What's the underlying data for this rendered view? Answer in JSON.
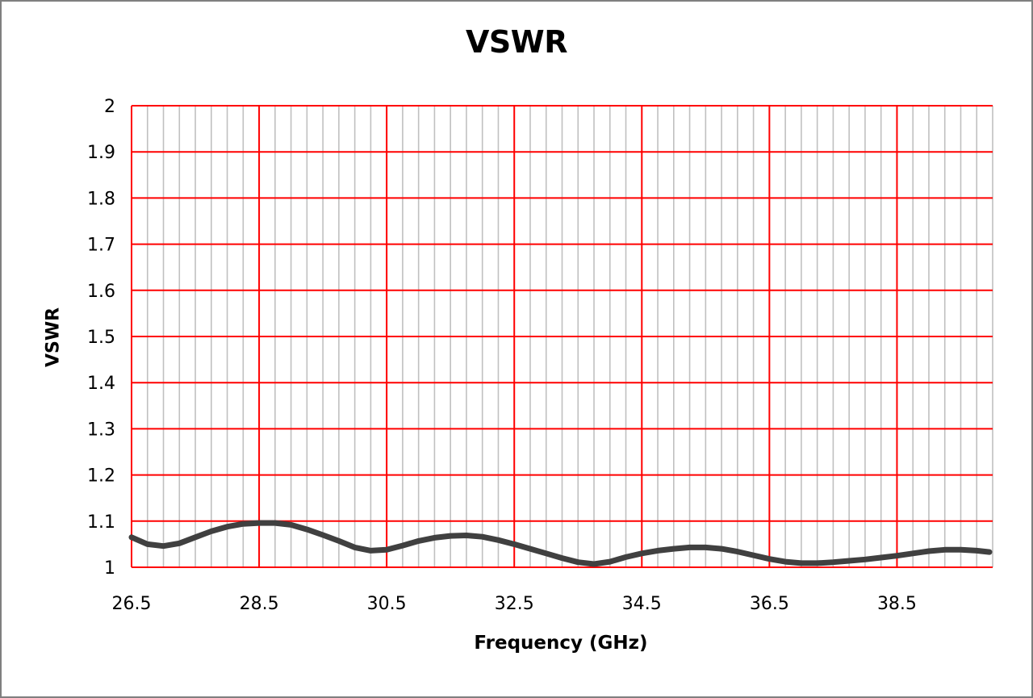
{
  "chart_data": {
    "type": "line",
    "title": "VSWR",
    "xlabel": "Frequency (GHz)",
    "ylabel": "VSWR",
    "xlim": [
      26.5,
      40.0
    ],
    "ylim": [
      1.0,
      2.0
    ],
    "x_ticks": [
      "26.5",
      "28.5",
      "30.5",
      "32.5",
      "34.5",
      "36.5",
      "38.5"
    ],
    "y_ticks": [
      "1",
      "1.1",
      "1.2",
      "1.3",
      "1.4",
      "1.5",
      "1.6",
      "1.7",
      "1.8",
      "1.9",
      "2"
    ],
    "grid": true,
    "major_grid_x_step": 2,
    "minor_grid_x_step": 0.25,
    "major_grid_y_step": 0.1,
    "colors": {
      "major_grid": "#ff0000",
      "minor_grid": "#c0c0c0",
      "line": "#404040",
      "frame": "#7f7f7f"
    },
    "series": [
      {
        "x": [
          26.5,
          26.75,
          27.0,
          27.25,
          27.5,
          27.75,
          28.0,
          28.25,
          28.5,
          28.75,
          29.0,
          29.25,
          29.5,
          29.75,
          30.0,
          30.25,
          30.5,
          30.75,
          31.0,
          31.25,
          31.5,
          31.75,
          32.0,
          32.25,
          32.5,
          32.75,
          33.0,
          33.25,
          33.5,
          33.75,
          34.0,
          34.25,
          34.5,
          34.75,
          35.0,
          35.25,
          35.5,
          35.75,
          36.0,
          36.25,
          36.5,
          36.75,
          37.0,
          37.25,
          37.5,
          37.75,
          38.0,
          38.25,
          38.5,
          38.75,
          39.0,
          39.25,
          39.5,
          39.75,
          39.95
        ],
        "values": [
          1.065,
          1.05,
          1.046,
          1.052,
          1.065,
          1.078,
          1.088,
          1.094,
          1.096,
          1.096,
          1.092,
          1.082,
          1.07,
          1.057,
          1.043,
          1.036,
          1.038,
          1.047,
          1.057,
          1.064,
          1.068,
          1.069,
          1.066,
          1.059,
          1.05,
          1.04,
          1.03,
          1.02,
          1.011,
          1.007,
          1.012,
          1.022,
          1.03,
          1.036,
          1.04,
          1.043,
          1.043,
          1.04,
          1.034,
          1.026,
          1.018,
          1.012,
          1.009,
          1.009,
          1.011,
          1.014,
          1.017,
          1.021,
          1.025,
          1.03,
          1.035,
          1.038,
          1.038,
          1.036,
          1.033
        ]
      }
    ]
  }
}
